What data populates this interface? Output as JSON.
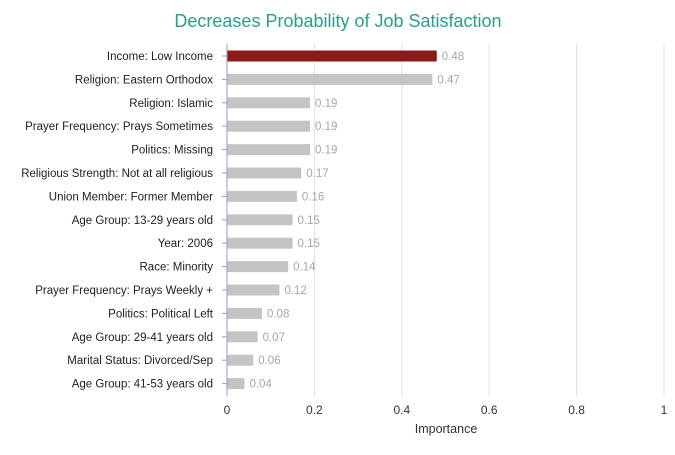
{
  "chart_data": {
    "type": "bar",
    "orientation": "horizontal",
    "title": "Decreases Probability of Job Satisfaction",
    "xlabel": "Importance",
    "ylabel": "",
    "xlim": [
      0,
      1
    ],
    "x_ticks": [
      "0",
      "0.2",
      "0.4",
      "0.6",
      "0.8",
      "1"
    ],
    "x_tick_values": [
      0,
      0.2,
      0.4,
      0.6,
      0.8,
      1
    ],
    "grid": true,
    "legend": "none",
    "categories": [
      "Income: Low Income",
      "Religion: Eastern Orthodox",
      "Religion: Islamic",
      "Prayer Frequency: Prays Sometimes",
      "Politics: Missing",
      "Religious Strength: Not at all religious",
      "Union Member: Former Member",
      "Age Group: 13-29 years old",
      "Year: 2006",
      "Race: Minority",
      "Prayer Frequency: Prays Weekly +",
      "Politics: Political Left",
      "Age Group: 29-41 years old",
      "Marital Status: Divorced/Sep",
      "Age Group: 41-53 years old"
    ],
    "values": [
      0.48,
      0.47,
      0.19,
      0.19,
      0.19,
      0.17,
      0.16,
      0.15,
      0.15,
      0.14,
      0.12,
      0.08,
      0.07,
      0.06,
      0.04
    ],
    "value_labels": [
      "0.48",
      "0.47",
      "0.19",
      "0.19",
      "0.19",
      "0.17",
      "0.16",
      "0.15",
      "0.15",
      "0.14",
      "0.12",
      "0.08",
      "0.07",
      "0.06",
      "0.04"
    ],
    "highlight_index": 0,
    "colors": {
      "title": "#2a9d8f",
      "highlight_bar": "#8b1a1a",
      "bar": "#c4c4c4",
      "value_label": "#a6a6a6",
      "category_label": "#222222",
      "tick_label": "#333333",
      "grid": "#e0e0e0",
      "axis": "#9999cc"
    }
  }
}
